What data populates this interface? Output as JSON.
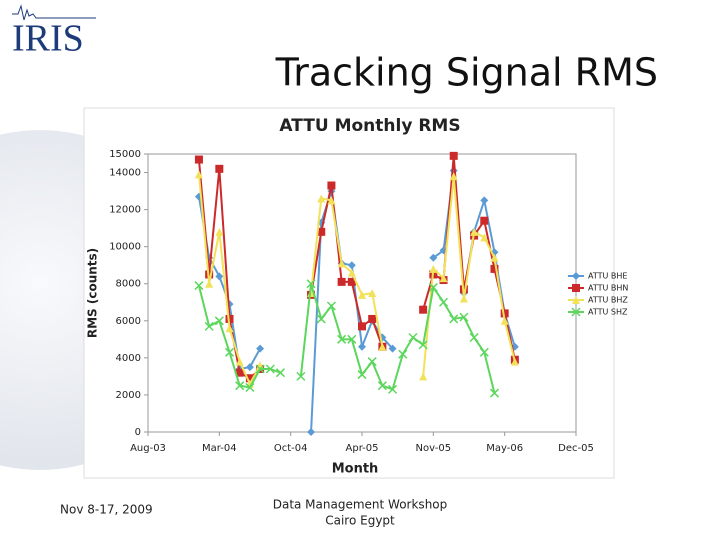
{
  "logo": "IRIS",
  "slide_title": "Tracking Signal RMS",
  "footer": {
    "date": "Nov 8-17, 2009",
    "event": "Data Management Workshop",
    "place": "Cairo Egypt"
  },
  "chart_data": {
    "type": "line",
    "title": "ATTU Monthly RMS",
    "x_label": "Month",
    "y_label": "RMS (counts)",
    "categories": [
      "Aug-03",
      null,
      null,
      null,
      null,
      null,
      null,
      "Mar-04",
      null,
      null,
      null,
      null,
      null,
      null,
      "Oct-04",
      null,
      null,
      null,
      null,
      null,
      null,
      "Apr-05",
      null,
      null,
      null,
      null,
      null,
      null,
      "Nov-05",
      null,
      null,
      null,
      null,
      null,
      null,
      "May-06",
      null,
      null,
      null,
      null,
      null,
      null,
      "Dec-05"
    ],
    "ylim": [
      0,
      15000
    ],
    "yticks": [
      0,
      2000,
      4000,
      6000,
      8000,
      10000,
      12000,
      14000,
      15000
    ],
    "legend": "right",
    "series": [
      {
        "name": "ATTU BHE",
        "color": "#5b9bd5",
        "marker": "diamond",
        "values": [
          null,
          null,
          null,
          null,
          null,
          12700,
          9400,
          8400,
          6900,
          3400,
          3500,
          4500,
          null,
          null,
          null,
          null,
          0,
          11300,
          13000,
          9100,
          9000,
          4600,
          6000,
          5100,
          4500,
          null,
          null,
          null,
          9400,
          9800,
          14100,
          7500,
          10800,
          12500,
          9700,
          6400,
          4600,
          null,
          null,
          null,
          null,
          null,
          null
        ]
      },
      {
        "name": "ATTU BHN",
        "color": "#cc2a2a",
        "marker": "square",
        "values": [
          null,
          null,
          null,
          null,
          null,
          14700,
          8500,
          14200,
          6100,
          3200,
          2900,
          3400,
          null,
          null,
          null,
          null,
          7400,
          10800,
          13300,
          8100,
          8100,
          5700,
          6100,
          4600,
          null,
          null,
          null,
          6600,
          8500,
          8200,
          14900,
          7700,
          10600,
          11400,
          8800,
          6400,
          3900,
          null,
          null,
          null,
          null,
          null,
          null
        ]
      },
      {
        "name": "ATTU BHZ",
        "color": "#f2e25a",
        "marker": "triangle",
        "values": [
          null,
          null,
          null,
          null,
          null,
          13900,
          8000,
          10800,
          5600,
          3800,
          2600,
          3600,
          null,
          null,
          null,
          null,
          7500,
          12600,
          12500,
          9100,
          8600,
          7400,
          7500,
          4600,
          null,
          null,
          null,
          3000,
          8800,
          8300,
          13800,
          7200,
          10800,
          10500,
          9400,
          6000,
          3800,
          null,
          null,
          null,
          null,
          null,
          null
        ]
      },
      {
        "name": "ATTU SHZ",
        "color": "#5cd65c",
        "marker": "x",
        "values": [
          null,
          null,
          null,
          null,
          null,
          7900,
          5700,
          6000,
          4300,
          2500,
          2400,
          3400,
          3400,
          3200,
          null,
          3000,
          8000,
          6100,
          6800,
          5000,
          5000,
          3100,
          3800,
          2500,
          2300,
          4200,
          5100,
          4700,
          7800,
          7000,
          6100,
          6200,
          5100,
          4300,
          2100,
          null,
          null,
          null,
          null,
          null,
          null,
          null,
          null
        ]
      }
    ]
  }
}
